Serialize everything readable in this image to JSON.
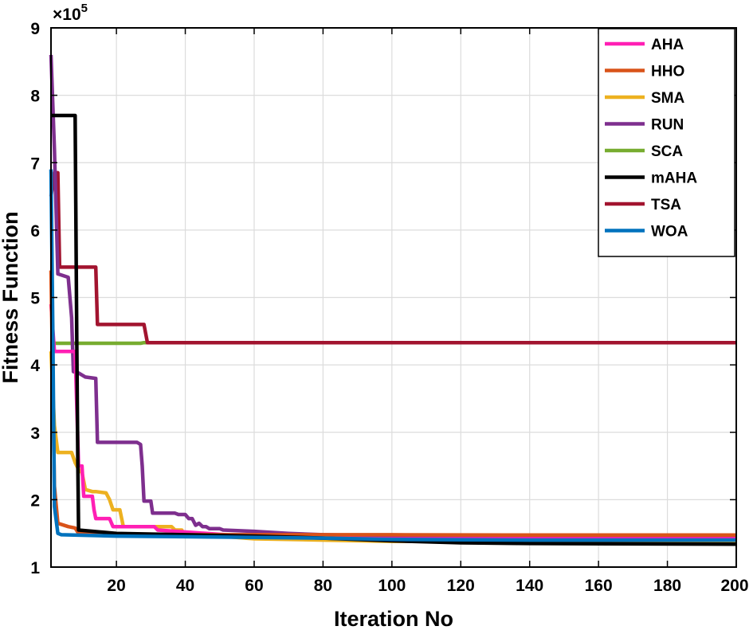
{
  "chart_data": {
    "type": "line",
    "xlabel": "Iteration No",
    "ylabel": "Fitness Function",
    "y_exponent_label": "×10",
    "y_exponent_power": "5",
    "y_scale_factor": 100000,
    "xlim": [
      1,
      200
    ],
    "ylim": [
      1,
      9
    ],
    "xticks": [
      20,
      40,
      60,
      80,
      100,
      120,
      140,
      160,
      180,
      200
    ],
    "yticks": [
      1,
      2,
      3,
      4,
      5,
      6,
      7,
      8,
      9
    ],
    "grid": true,
    "legend_position": "top-right",
    "series": [
      {
        "name": "AHA",
        "color": "#ff1fb4",
        "points": [
          [
            1,
            4.9
          ],
          [
            2,
            4.2
          ],
          [
            8,
            4.2
          ],
          [
            9,
            2.5
          ],
          [
            10,
            2.5
          ],
          [
            10.5,
            2.05
          ],
          [
            13,
            2.05
          ],
          [
            13.5,
            1.85
          ],
          [
            14,
            1.72
          ],
          [
            18,
            1.72
          ],
          [
            19,
            1.6
          ],
          [
            31,
            1.6
          ],
          [
            32,
            1.55
          ],
          [
            60,
            1.45
          ],
          [
            100,
            1.42
          ],
          [
            140,
            1.42
          ],
          [
            200,
            1.42
          ]
        ]
      },
      {
        "name": "HHO",
        "color": "#d95319",
        "points": [
          [
            1,
            5.4
          ],
          [
            2,
            2.2
          ],
          [
            3,
            1.65
          ],
          [
            6,
            1.6
          ],
          [
            8,
            1.58
          ],
          [
            9,
            1.5
          ],
          [
            20,
            1.49
          ],
          [
            40,
            1.48
          ],
          [
            60,
            1.48
          ],
          [
            80,
            1.48
          ],
          [
            100,
            1.48
          ],
          [
            140,
            1.475
          ],
          [
            200,
            1.475
          ]
        ]
      },
      {
        "name": "SMA",
        "color": "#edb120",
        "points": [
          [
            1,
            4.2
          ],
          [
            2,
            3.1
          ],
          [
            3,
            2.7
          ],
          [
            7,
            2.7
          ],
          [
            8,
            2.55
          ],
          [
            9,
            2.45
          ],
          [
            10,
            2.4
          ],
          [
            11,
            2.15
          ],
          [
            13,
            2.12
          ],
          [
            14,
            2.12
          ],
          [
            17,
            2.1
          ],
          [
            18,
            2.0
          ],
          [
            19,
            1.85
          ],
          [
            21,
            1.85
          ],
          [
            22,
            1.6
          ],
          [
            36,
            1.6
          ],
          [
            37,
            1.55
          ],
          [
            39,
            1.55
          ],
          [
            39.5,
            1.5
          ],
          [
            60,
            1.42
          ],
          [
            80,
            1.4
          ],
          [
            100,
            1.38
          ],
          [
            140,
            1.38
          ],
          [
            200,
            1.38
          ]
        ]
      },
      {
        "name": "RUN",
        "color": "#7e2f8e",
        "points": [
          [
            1,
            8.6
          ],
          [
            2,
            7.2
          ],
          [
            3,
            5.35
          ],
          [
            6,
            5.3
          ],
          [
            7,
            4.7
          ],
          [
            7.5,
            3.9
          ],
          [
            9,
            3.88
          ],
          [
            11,
            3.82
          ],
          [
            14,
            3.8
          ],
          [
            14.5,
            2.85
          ],
          [
            26,
            2.85
          ],
          [
            27,
            2.82
          ],
          [
            27.5,
            2.5
          ],
          [
            28,
            1.98
          ],
          [
            30,
            1.98
          ],
          [
            30.5,
            1.8
          ],
          [
            37,
            1.8
          ],
          [
            38,
            1.78
          ],
          [
            40,
            1.78
          ],
          [
            41,
            1.72
          ],
          [
            42,
            1.72
          ],
          [
            43,
            1.62
          ],
          [
            44,
            1.65
          ],
          [
            45,
            1.6
          ],
          [
            46,
            1.6
          ],
          [
            47,
            1.57
          ],
          [
            50,
            1.57
          ],
          [
            51,
            1.55
          ],
          [
            60,
            1.53
          ],
          [
            70,
            1.5
          ],
          [
            80,
            1.48
          ],
          [
            100,
            1.46
          ],
          [
            140,
            1.45
          ],
          [
            200,
            1.45
          ]
        ]
      },
      {
        "name": "SCA",
        "color": "#77ac30",
        "points": [
          [
            1,
            4.32
          ],
          [
            27,
            4.32
          ],
          [
            28,
            4.33
          ],
          [
            200,
            4.33
          ]
        ]
      },
      {
        "name": "mAHA",
        "color": "#000000",
        "points": [
          [
            1,
            7.7
          ],
          [
            8,
            7.7
          ],
          [
            8.5,
            4.3
          ],
          [
            8.8,
            2.5
          ],
          [
            9,
            1.55
          ],
          [
            20,
            1.5
          ],
          [
            40,
            1.48
          ],
          [
            60,
            1.46
          ],
          [
            80,
            1.43
          ],
          [
            100,
            1.39
          ],
          [
            120,
            1.36
          ],
          [
            140,
            1.35
          ],
          [
            200,
            1.34
          ]
        ]
      },
      {
        "name": "TSA",
        "color": "#a2142f",
        "points": [
          [
            1,
            6.5
          ],
          [
            2,
            6.85
          ],
          [
            3,
            6.85
          ],
          [
            3.5,
            5.45
          ],
          [
            14,
            5.45
          ],
          [
            14.5,
            4.6
          ],
          [
            28,
            4.6
          ],
          [
            29,
            4.33
          ],
          [
            200,
            4.33
          ]
        ]
      },
      {
        "name": "WOA",
        "color": "#0072bd",
        "points": [
          [
            1,
            6.9
          ],
          [
            1.5,
            4.6
          ],
          [
            2,
            1.9
          ],
          [
            3,
            1.5
          ],
          [
            4,
            1.48
          ],
          [
            20,
            1.46
          ],
          [
            40,
            1.45
          ],
          [
            60,
            1.44
          ],
          [
            80,
            1.43
          ],
          [
            100,
            1.41
          ],
          [
            140,
            1.4
          ],
          [
            200,
            1.4
          ]
        ]
      }
    ]
  }
}
